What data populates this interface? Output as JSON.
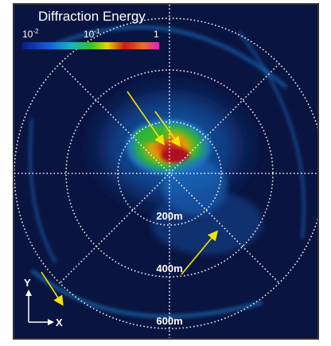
{
  "title": "Diffraction Energy",
  "colorbar": {
    "ticks": [
      {
        "base": "10",
        "exponent": "-2"
      },
      {
        "base": "10",
        "exponent": "-1"
      },
      {
        "base": "1"
      }
    ]
  },
  "rings": [
    "200m",
    "400m",
    "600m"
  ],
  "axes": {
    "y": "Y",
    "x": "X"
  }
}
